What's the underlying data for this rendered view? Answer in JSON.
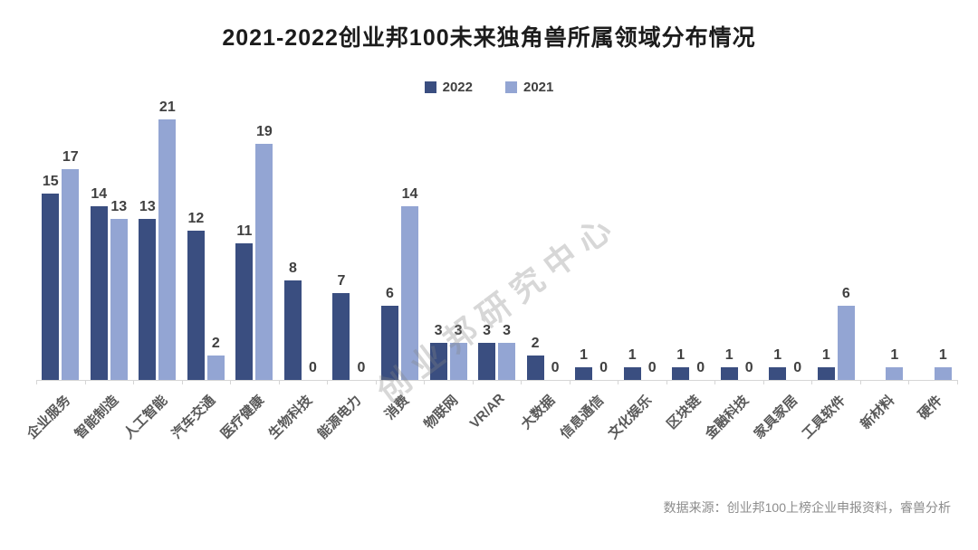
{
  "title": "2021-2022创业邦100未来独角兽所属领域分布情况",
  "watermark": "创业邦研究中心",
  "source_note": "数据来源：创业邦100上榜企业申报资料，睿兽分析",
  "colors": {
    "series_2022": "#3a4e80",
    "series_2021": "#93a5d3",
    "axis_line": "#d6d6d6",
    "label_text": "#404040"
  },
  "chart_data": {
    "type": "bar",
    "title": "2021-2022创业邦100未来独角兽所属领域分布情况",
    "categories": [
      "企业服务",
      "智能制造",
      "人工智能",
      "汽车交通",
      "医疗健康",
      "生物科技",
      "能源电力",
      "消费",
      "物联网",
      "VR/AR",
      "大数据",
      "信息通信",
      "文化娱乐",
      "区块链",
      "金融科技",
      "家具家居",
      "工具软件",
      "新材料",
      "硬件"
    ],
    "series": [
      {
        "name": "2022",
        "color": "#3a4e80",
        "values": [
          15,
          14,
          13,
          12,
          11,
          8,
          7,
          6,
          3,
          3,
          2,
          1,
          1,
          1,
          1,
          1,
          1,
          null,
          null
        ]
      },
      {
        "name": "2021",
        "color": "#93a5d3",
        "values": [
          17,
          13,
          21,
          2,
          19,
          0,
          0,
          14,
          3,
          3,
          0,
          0,
          0,
          0,
          0,
          0,
          6,
          1,
          1
        ]
      }
    ],
    "xlabel": "",
    "ylabel": "",
    "ylim": [
      0,
      21
    ],
    "grid": false,
    "value_labels": true,
    "legend_position": "top"
  }
}
